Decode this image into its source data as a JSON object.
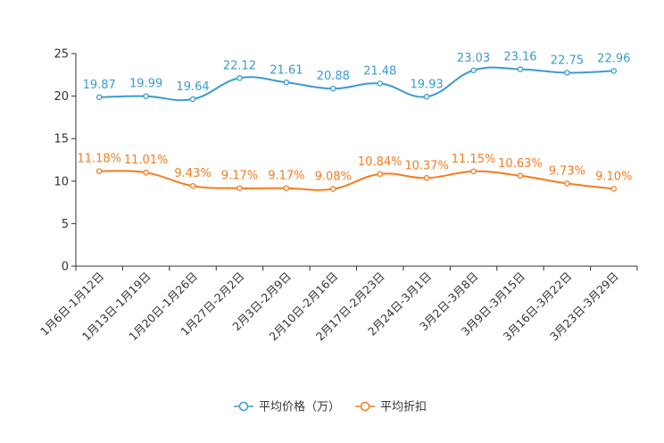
{
  "chart_data": {
    "type": "line",
    "categories": [
      "1月6日-1月12日",
      "1月13日-1月19日",
      "1月20日-1月26日",
      "1月27日-2月2日",
      "2月3日-2月9日",
      "2月10日-2月16日",
      "2月17日-2月23日",
      "2月24日-3月1日",
      "3月2日-3月8日",
      "3月9日-3月15日",
      "3月16日-3月22日",
      "3月23日-3月29日"
    ],
    "ylim": [
      0,
      25
    ],
    "yticks": [
      0,
      5,
      10,
      15,
      20,
      25
    ],
    "series": [
      {
        "name": "平均价格（万）",
        "color": "#3b9bcf",
        "values": [
          19.87,
          19.99,
          19.64,
          22.12,
          21.61,
          20.88,
          21.48,
          19.93,
          23.03,
          23.16,
          22.75,
          22.96
        ],
        "labels": [
          "19.87",
          "19.99",
          "19.64",
          "22.12",
          "21.61",
          "20.88",
          "21.48",
          "19.93",
          "23.03",
          "23.16",
          "22.75",
          "22.96"
        ]
      },
      {
        "name": "平均折扣",
        "color": "#f57c1f",
        "values": [
          11.18,
          11.01,
          9.43,
          9.17,
          9.17,
          9.08,
          10.84,
          10.37,
          11.15,
          10.63,
          9.73,
          9.1
        ],
        "labels": [
          "11.18%",
          "11.01%",
          "9.43%",
          "9.17%",
          "9.17%",
          "9.08%",
          "10.84%",
          "10.37%",
          "11.15%",
          "10.63%",
          "9.73%",
          "9.10%"
        ]
      }
    ],
    "legend_position": "bottom-center",
    "grid": false
  }
}
